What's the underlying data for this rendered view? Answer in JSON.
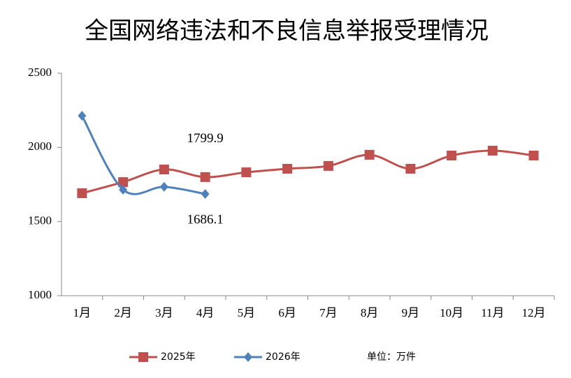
{
  "chart_data": {
    "type": "line",
    "title": "全国网络违法和不良信息举报受理情况",
    "unit_note": "单位：万件",
    "categories": [
      "1月",
      "2月",
      "3月",
      "4月",
      "5月",
      "6月",
      "7月",
      "8月",
      "9月",
      "10月",
      "11月",
      "12月"
    ],
    "series": [
      {
        "name": "2025年",
        "color": "#c0504d",
        "marker": "square",
        "values": [
          1691,
          1766,
          1851,
          1799.9,
          1832,
          1856,
          1875,
          1950,
          1856,
          1945,
          1978,
          1945
        ],
        "value_labels": [
          null,
          null,
          null,
          "1799.9",
          null,
          null,
          null,
          null,
          null,
          null,
          null,
          null
        ]
      },
      {
        "name": "2026年",
        "color": "#4f81bd",
        "marker": "diamond",
        "values": [
          2213,
          1715,
          1734,
          1686.1,
          null,
          null,
          null,
          null,
          null,
          null,
          null,
          null
        ],
        "value_labels": [
          null,
          null,
          null,
          "1686.1",
          null,
          null,
          null,
          null,
          null,
          null,
          null,
          null
        ]
      }
    ],
    "ylim": [
      1000,
      2500
    ],
    "yticks": [
      1000,
      1500,
      2000,
      2500
    ],
    "grid": false,
    "legend": "bottom"
  }
}
